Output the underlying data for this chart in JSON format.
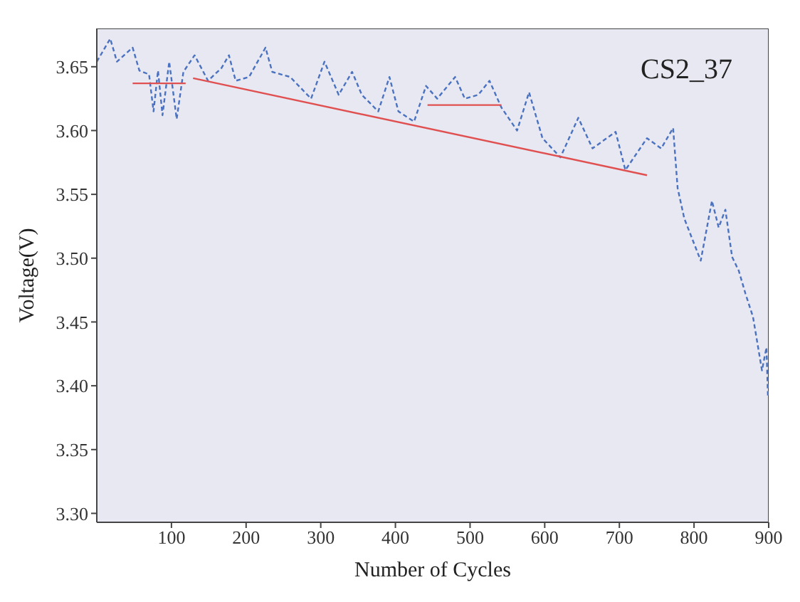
{
  "chart_data": {
    "type": "line",
    "xlabel": "Number of Cycles",
    "ylabel": "Voltage(V)",
    "annotations": [
      "CS2_37"
    ],
    "xlim": [
      0,
      900
    ],
    "xticks": [
      100,
      200,
      300,
      400,
      500,
      600,
      700,
      800,
      900
    ],
    "ylim": [
      3.293,
      3.68
    ],
    "yticks": [
      {
        "value": 3.3,
        "label": "3.30"
      },
      3.35,
      {
        "value": 3.4,
        "label": "3.40"
      },
      3.45,
      {
        "value": 3.5,
        "label": "3.50"
      },
      3.55,
      {
        "value": 3.6,
        "label": "3.60"
      },
      3.65
    ],
    "grid": false,
    "legend": false,
    "series": [
      {
        "color": "#4a72c0",
        "line_style": "dashed",
        "x": [
          0,
          18,
          27,
          48,
          57,
          70,
          76,
          82,
          88,
          97,
          107,
          116,
          131,
          149,
          167,
          177,
          186,
          204,
          226,
          235,
          259,
          287,
          305,
          324,
          342,
          355,
          377,
          392,
          404,
          425,
          441,
          456,
          480,
          493,
          511,
          526,
          542,
          563,
          579,
          597,
          621,
          645,
          664,
          695,
          708,
          737,
          756,
          772,
          778,
          787,
          809,
          824,
          833,
          842,
          851,
          860,
          869,
          879,
          891,
          897,
          899
        ],
        "values": [
          3.654,
          3.672,
          3.654,
          3.665,
          3.647,
          3.644,
          3.615,
          3.647,
          3.612,
          3.654,
          3.609,
          3.646,
          3.659,
          3.639,
          3.649,
          3.659,
          3.639,
          3.642,
          3.665,
          3.646,
          3.642,
          3.625,
          3.654,
          3.628,
          3.646,
          3.628,
          3.615,
          3.642,
          3.615,
          3.607,
          3.635,
          3.625,
          3.642,
          3.625,
          3.628,
          3.639,
          3.618,
          3.6,
          3.63,
          3.594,
          3.579,
          3.61,
          3.586,
          3.599,
          3.569,
          3.594,
          3.586,
          3.602,
          3.555,
          3.531,
          3.498,
          3.545,
          3.524,
          3.538,
          3.501,
          3.49,
          3.472,
          3.454,
          3.412,
          3.43,
          3.392
        ]
      },
      {
        "color": "#e05050",
        "line_style": "solid",
        "x": [
          48,
          119
        ],
        "values": [
          3.637,
          3.637
        ]
      },
      {
        "color": "#e05050",
        "line_style": "solid",
        "x": [
          129,
          737
        ],
        "values": [
          3.641,
          3.565
        ]
      },
      {
        "color": "#e05050",
        "line_style": "solid",
        "x": [
          443,
          542
        ],
        "values": [
          3.62,
          3.62
        ]
      }
    ]
  }
}
